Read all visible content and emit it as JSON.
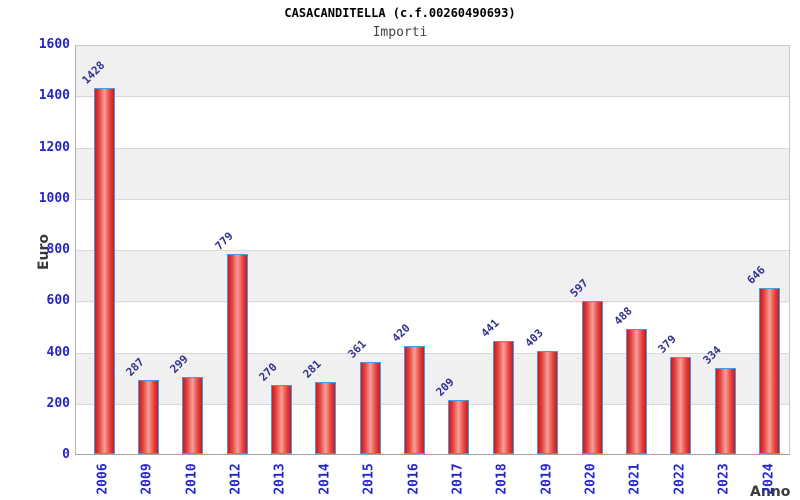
{
  "chart_data": {
    "type": "bar",
    "title": "CASACANDITELLA (c.f.00260490693)",
    "subtitle": "Importi",
    "xlabel": "Anno",
    "ylabel": "Euro",
    "categories": [
      "2006",
      "2009",
      "2010",
      "2012",
      "2013",
      "2014",
      "2015",
      "2016",
      "2017",
      "2018",
      "2019",
      "2020",
      "2021",
      "2022",
      "2023",
      "2024"
    ],
    "values": [
      1428,
      287,
      299,
      779,
      270,
      281,
      361,
      420,
      209,
      441,
      403,
      597,
      488,
      379,
      334,
      646
    ],
    "ylim": [
      0,
      1600
    ],
    "ytick_interval": 200,
    "yticks": [
      0,
      200,
      400,
      600,
      800,
      1000,
      1200,
      1400,
      1600
    ],
    "grid": "horizontal gridlines with alternating background bands",
    "legend": "none",
    "colors": {
      "title_color": "#000000",
      "subtitle_color": "#454545",
      "bar_edge": "#4e96e8",
      "bar_dark": "#c01f1f",
      "bar_mid": "#e8433c",
      "bar_light": "#f4a09a",
      "tick_label": "#2525cd",
      "value_label": "#32328c",
      "band_gray": "#f0f0f1",
      "band_white": "#ffffff",
      "gridline": "#d9d9d9",
      "axis_title": "#3a3a3a"
    }
  }
}
